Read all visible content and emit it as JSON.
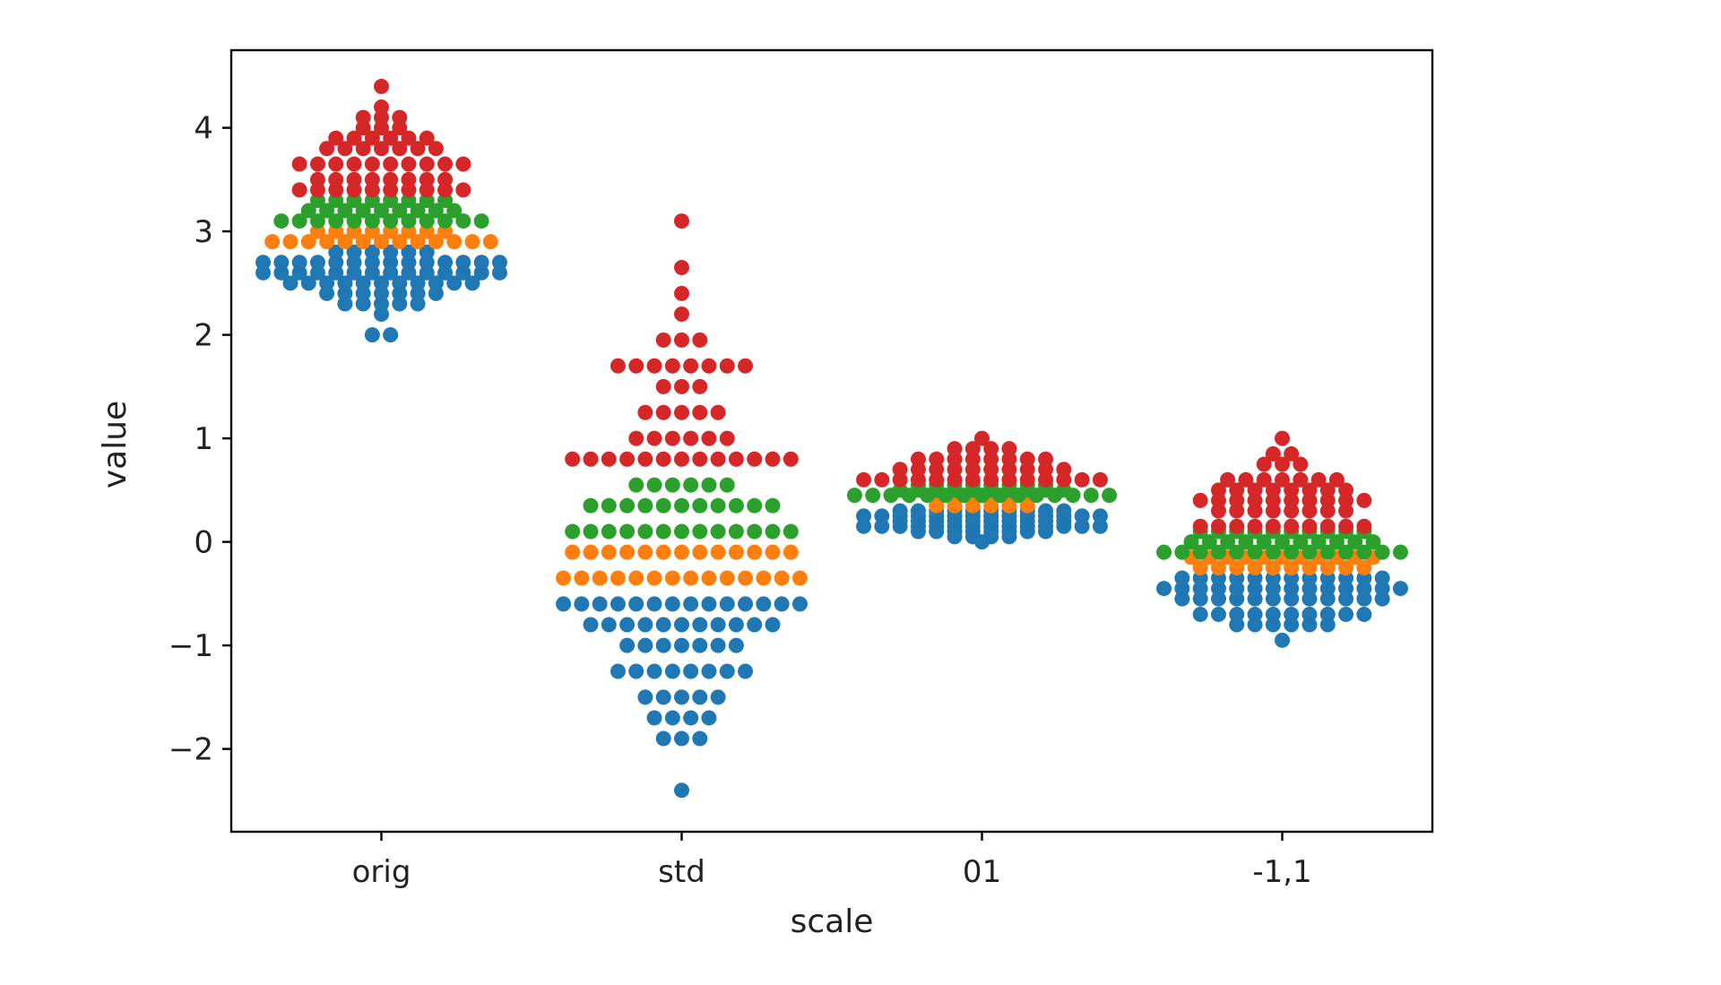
{
  "chart_data": {
    "type": "scatter",
    "subtype": "swarm",
    "title": "",
    "xlabel": "scale",
    "ylabel": "value",
    "categories": [
      "orig",
      "std",
      "01",
      "-1,1"
    ],
    "ylim": [
      -2.8,
      4.75
    ],
    "yticks": [
      -2,
      -1,
      0,
      1,
      2,
      3,
      4
    ],
    "ytick_labels": [
      "−2",
      "−1",
      "0",
      "1",
      "2",
      "3",
      "4"
    ],
    "grid": false,
    "legend": "none",
    "colors": [
      "#1f77b4",
      "#ff7f0e",
      "#2ca02c",
      "#d62728"
    ],
    "series": [
      {
        "values": [
          [
            2.0,
            2.2,
            2.3,
            2.4,
            2.5,
            2.6,
            2.7,
            2.8
          ],
          [
            -2.4,
            -1.9,
            -1.7,
            -1.5,
            -1.25,
            -1.0,
            -0.8,
            -0.6
          ],
          [
            0.0,
            0.05,
            0.1,
            0.15,
            0.2,
            0.25,
            0.3
          ],
          [
            -0.95,
            -0.8,
            -0.7,
            -0.55,
            -0.45,
            -0.35
          ]
        ]
      },
      {
        "values": [
          [
            2.9,
            3.0
          ],
          [
            -0.35,
            -0.1
          ],
          [
            0.35,
            0.4
          ],
          [
            -0.25,
            -0.15
          ]
        ]
      },
      {
        "values": [
          [
            3.1,
            3.2,
            3.3
          ],
          [
            0.1,
            0.35,
            0.55
          ],
          [
            0.45,
            0.5,
            0.55
          ],
          [
            -0.1,
            0.0,
            0.1
          ]
        ]
      },
      {
        "values": [
          [
            3.4,
            3.5,
            3.65,
            3.8,
            3.9,
            4.0,
            4.1,
            4.2,
            4.4
          ],
          [
            0.8,
            1.0,
            1.25,
            1.5,
            1.7,
            1.95,
            2.2,
            2.4,
            2.65,
            3.1
          ],
          [
            0.6,
            0.7,
            0.8,
            0.9,
            1.0
          ],
          [
            0.15,
            0.3,
            0.4,
            0.5,
            0.6,
            0.75,
            0.85,
            1.0
          ]
        ]
      }
    ],
    "point_counts": [
      [
        [
          2,
          1,
          5,
          7,
          11,
          14,
          14,
          6
        ],
        [
          1,
          3,
          4,
          5,
          8,
          7,
          11,
          14
        ],
        [
          1,
          4,
          8,
          14,
          10,
          14,
          10
        ],
        [
          1,
          6,
          10,
          12,
          14,
          12
        ]
      ],
      [
        [
          13,
          8
        ],
        [
          14,
          13
        ],
        [
          6,
          6
        ],
        [
          10,
          11
        ]
      ],
      [
        [
          12,
          9,
          8
        ],
        [
          13,
          11,
          6
        ],
        [
          15,
          10,
          8
        ],
        [
          14,
          11,
          10
        ]
      ],
      [
        [
          10,
          8,
          10,
          7,
          6,
          3,
          3,
          1,
          1
        ],
        [
          13,
          6,
          5,
          3,
          8,
          3,
          1,
          1,
          1,
          1
        ],
        [
          14,
          10,
          8,
          4,
          1
        ],
        [
          10,
          8,
          10,
          8,
          7,
          3,
          2,
          1
        ]
      ]
    ]
  }
}
